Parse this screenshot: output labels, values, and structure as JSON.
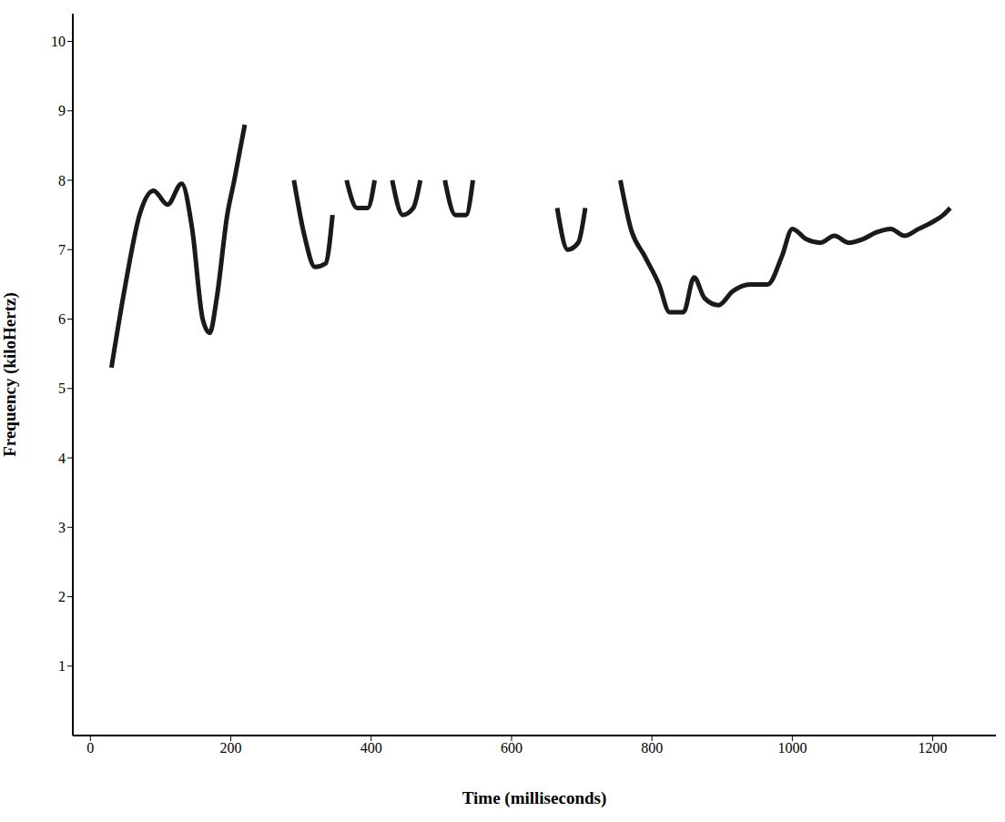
{
  "chart_data": {
    "type": "line",
    "x_label": "Time (milliseconds)",
    "y_label": "Frequency (kiloHertz)",
    "x": [
      30,
      50,
      70,
      90,
      110,
      130,
      145,
      160,
      170,
      180,
      195,
      205,
      220,
      250,
      290,
      305,
      320,
      335,
      345,
      355,
      365,
      380,
      395,
      405,
      418,
      430,
      445,
      460,
      470,
      488,
      505,
      520,
      535,
      545,
      600,
      665,
      680,
      695,
      705,
      730,
      755,
      770,
      790,
      810,
      825,
      845,
      860,
      875,
      895,
      915,
      940,
      965,
      985,
      1000,
      1020,
      1040,
      1060,
      1080,
      1100,
      1120,
      1140,
      1160,
      1180,
      1200,
      1215,
      1225
    ],
    "values": [
      5.3,
      6.5,
      7.5,
      7.85,
      7.65,
      7.95,
      7.3,
      6.0,
      5.8,
      6.3,
      7.5,
      8.0,
      8.8,
      null,
      8.0,
      7.2,
      6.75,
      6.8,
      7.5,
      null,
      8.0,
      7.6,
      7.6,
      8.0,
      null,
      8.0,
      7.5,
      7.6,
      8.0,
      null,
      8.0,
      7.5,
      7.5,
      8.0,
      null,
      7.6,
      7.0,
      7.1,
      7.6,
      null,
      8.0,
      7.3,
      6.9,
      6.5,
      6.1,
      6.1,
      6.6,
      6.3,
      6.2,
      6.4,
      6.5,
      6.5,
      6.9,
      7.3,
      7.15,
      7.1,
      7.2,
      7.1,
      7.15,
      7.25,
      7.3,
      7.2,
      7.3,
      7.4,
      7.5,
      7.6
    ],
    "color": "#1a1a1a",
    "xlim": [
      -25,
      1290
    ],
    "ylim": [
      0,
      10.4
    ],
    "xticks": [
      0,
      200,
      400,
      600,
      800,
      1000,
      1200
    ],
    "yticks": [
      1,
      2,
      3,
      4,
      5,
      6,
      7,
      8,
      9,
      10
    ],
    "grid": false,
    "marker": "none",
    "line_style": "solid"
  }
}
